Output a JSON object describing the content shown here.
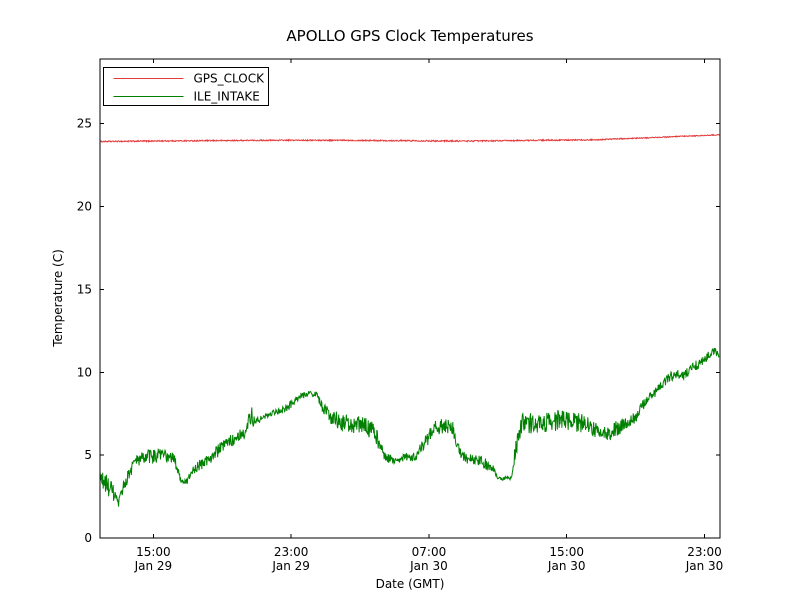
{
  "figure": {
    "background": "#ffffff",
    "axes_edge_color": "#000000"
  },
  "chart_data": {
    "type": "line",
    "title": "APOLLO GPS Clock Temperatures",
    "xlabel": "Date (GMT)",
    "ylabel": "Temperature (C)",
    "xlim": [
      0,
      36
    ],
    "x_unit": "hours after Jan 29 12:00 GMT",
    "ylim": [
      0,
      28.9
    ],
    "yticks": [
      0,
      5,
      10,
      15,
      20,
      25
    ],
    "xticks": [
      {
        "t": 3.1,
        "time": "15:00",
        "date": "Jan 29"
      },
      {
        "t": 11.1,
        "time": "23:00",
        "date": "Jan 29"
      },
      {
        "t": 19.1,
        "time": "07:00",
        "date": "Jan 30"
      },
      {
        "t": 27.1,
        "time": "15:00",
        "date": "Jan 30"
      },
      {
        "t": 35.1,
        "time": "23:00",
        "date": "Jan 30"
      }
    ],
    "grid": false,
    "legend": {
      "position": "upper-left",
      "entries": [
        {
          "label": "GPS_CLOCK",
          "color": "#e43b3b"
        },
        {
          "label": "ILE_INTAKE",
          "color": "#008000"
        }
      ]
    },
    "points_format": "[hours, degC, noise_amplitude_degC]",
    "noise_seed": 1234,
    "series": [
      {
        "name": "GPS_CLOCK",
        "color": "#e43b3b",
        "points_tvn": [
          [
            0,
            23.92,
            0.035
          ],
          [
            3,
            23.95,
            0.035
          ],
          [
            6,
            23.97,
            0.035
          ],
          [
            9,
            23.99,
            0.035
          ],
          [
            12,
            24.0,
            0.035
          ],
          [
            15,
            23.99,
            0.035
          ],
          [
            18,
            23.97,
            0.04
          ],
          [
            21,
            23.95,
            0.04
          ],
          [
            23.5,
            23.97,
            0.035
          ],
          [
            26,
            24.0,
            0.035
          ],
          [
            28.5,
            24.02,
            0.035
          ],
          [
            30,
            24.08,
            0.03
          ],
          [
            31.5,
            24.13,
            0.03
          ],
          [
            33,
            24.2,
            0.03
          ],
          [
            34.5,
            24.26,
            0.03
          ],
          [
            36,
            24.33,
            0.03
          ]
        ]
      },
      {
        "name": "ILE_INTAKE",
        "color": "#008000",
        "points_tvn": [
          [
            0,
            3.6,
            0.6
          ],
          [
            0.5,
            3.1,
            0.6
          ],
          [
            0.9,
            2.5,
            0.5
          ],
          [
            1.05,
            1.9,
            0.3
          ],
          [
            1.35,
            3.1,
            0.4
          ],
          [
            2.0,
            4.6,
            0.4
          ],
          [
            2.7,
            4.9,
            0.45
          ],
          [
            3.5,
            5.0,
            0.45
          ],
          [
            4.3,
            4.8,
            0.35
          ],
          [
            4.7,
            3.5,
            0.2
          ],
          [
            5.05,
            3.4,
            0.2
          ],
          [
            5.4,
            4.1,
            0.3
          ],
          [
            6.1,
            4.6,
            0.35
          ],
          [
            7.0,
            5.4,
            0.4
          ],
          [
            7.9,
            6.1,
            0.35
          ],
          [
            8.5,
            6.4,
            0.3
          ],
          [
            8.75,
            7.4,
            0.8
          ],
          [
            9.0,
            7.0,
            0.2
          ],
          [
            9.9,
            7.5,
            0.15
          ],
          [
            10.8,
            7.8,
            0.25
          ],
          [
            11.6,
            8.5,
            0.2
          ],
          [
            12.2,
            8.8,
            0.15
          ],
          [
            12.6,
            8.6,
            0.2
          ],
          [
            12.9,
            7.9,
            0.3
          ],
          [
            13.4,
            7.3,
            0.45
          ],
          [
            14.0,
            7.0,
            0.55
          ],
          [
            14.7,
            6.8,
            0.6
          ],
          [
            15.4,
            6.8,
            0.5
          ],
          [
            16.0,
            6.3,
            0.6
          ],
          [
            16.5,
            4.9,
            0.3
          ],
          [
            17.1,
            4.7,
            0.25
          ],
          [
            17.7,
            4.9,
            0.25
          ],
          [
            18.3,
            4.9,
            0.3
          ],
          [
            18.9,
            5.8,
            0.4
          ],
          [
            19.4,
            6.6,
            0.45
          ],
          [
            20.0,
            6.8,
            0.45
          ],
          [
            20.5,
            6.6,
            0.4
          ],
          [
            20.9,
            5.1,
            0.3
          ],
          [
            21.3,
            4.8,
            0.3
          ],
          [
            22.1,
            4.6,
            0.35
          ],
          [
            22.8,
            4.3,
            0.3
          ],
          [
            23.1,
            3.6,
            0.12
          ],
          [
            23.9,
            3.6,
            0.12
          ],
          [
            24.15,
            5.5,
            0.6
          ],
          [
            24.5,
            7.0,
            0.6
          ],
          [
            25.3,
            6.9,
            0.65
          ],
          [
            26.0,
            7.0,
            0.6
          ],
          [
            26.6,
            7.1,
            0.65
          ],
          [
            27.3,
            7.0,
            0.6
          ],
          [
            28.2,
            6.9,
            0.6
          ],
          [
            29.0,
            6.4,
            0.45
          ],
          [
            29.7,
            6.3,
            0.4
          ],
          [
            30.05,
            6.7,
            0.55
          ],
          [
            30.6,
            6.9,
            0.35
          ],
          [
            31.1,
            7.3,
            0.35
          ],
          [
            31.7,
            8.3,
            0.3
          ],
          [
            32.1,
            8.6,
            0.3
          ],
          [
            32.6,
            9.2,
            0.3
          ],
          [
            33.1,
            9.7,
            0.3
          ],
          [
            33.5,
            9.9,
            0.25
          ],
          [
            33.9,
            9.8,
            0.3
          ],
          [
            34.4,
            10.3,
            0.3
          ],
          [
            34.8,
            10.5,
            0.3
          ],
          [
            35.2,
            10.9,
            0.3
          ],
          [
            35.6,
            11.3,
            0.25
          ],
          [
            35.95,
            11.1,
            0.2
          ]
        ]
      }
    ]
  }
}
